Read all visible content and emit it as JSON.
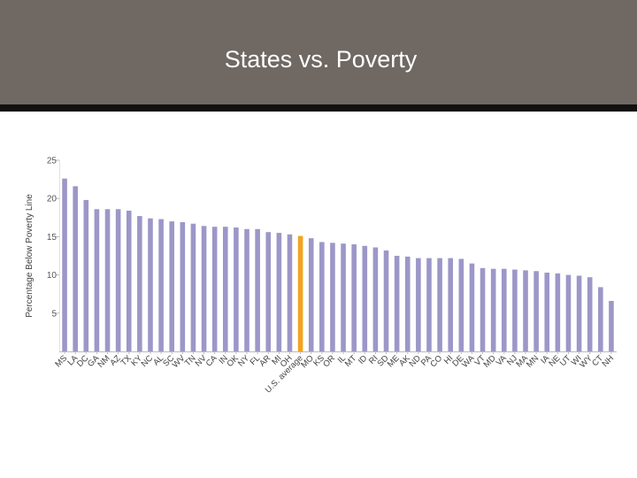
{
  "slide": {
    "title": "States vs. Poverty",
    "colors": {
      "header": "#6f6863",
      "bar": "#9c97c8",
      "highlight": "#f2a41e"
    }
  },
  "chart_data": {
    "type": "bar",
    "title": "",
    "xlabel": "",
    "ylabel": "Percentage Below Poverty Line",
    "ylim": [
      0,
      25
    ],
    "yticks": [
      5,
      10,
      15,
      20,
      25
    ],
    "highlight_category": "U.S. average",
    "categories": [
      "MS",
      "LA",
      "DC",
      "GA",
      "NM",
      "AZ",
      "TX",
      "KY",
      "NC",
      "AL",
      "SC",
      "WV",
      "TN",
      "NV",
      "CA",
      "IN",
      "OK",
      "NY",
      "FL",
      "AR",
      "MI",
      "OH",
      "U.S. average",
      "MO",
      "KS",
      "OR",
      "IL",
      "MT",
      "ID",
      "RI",
      "SD",
      "ME",
      "AK",
      "ND",
      "PA",
      "CO",
      "HI",
      "DE",
      "WA",
      "VT",
      "MD",
      "VA",
      "NJ",
      "MA",
      "MN",
      "IA",
      "NE",
      "UT",
      "WI",
      "WY",
      "CT",
      "NH"
    ],
    "values": [
      22.6,
      21.6,
      19.8,
      18.6,
      18.6,
      18.6,
      18.4,
      17.7,
      17.4,
      17.3,
      17.0,
      16.9,
      16.7,
      16.4,
      16.3,
      16.3,
      16.2,
      16.0,
      16.0,
      15.6,
      15.5,
      15.3,
      15.1,
      14.8,
      14.3,
      14.2,
      14.1,
      14.0,
      13.8,
      13.6,
      13.2,
      12.5,
      12.4,
      12.2,
      12.2,
      12.2,
      12.2,
      12.1,
      11.5,
      10.9,
      10.8,
      10.8,
      10.7,
      10.6,
      10.5,
      10.3,
      10.2,
      10.0,
      9.9,
      9.7,
      8.4,
      6.6
    ]
  }
}
